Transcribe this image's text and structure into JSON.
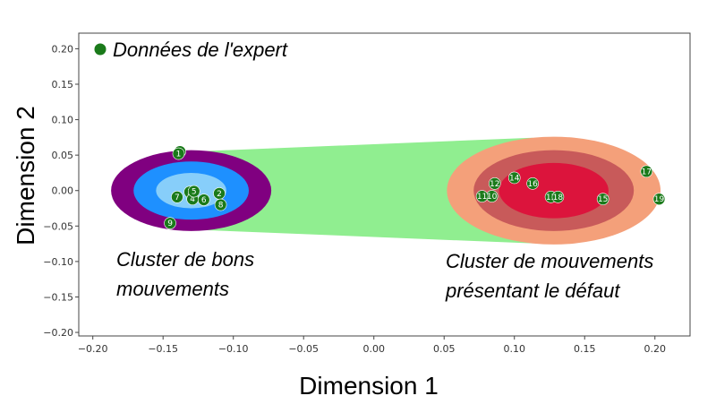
{
  "chart_data": {
    "type": "scatter",
    "xlabel": "Dimension 1",
    "ylabel": "Dimension 2",
    "xlim": [
      -0.21,
      0.225
    ],
    "ylim": [
      -0.205,
      0.222
    ],
    "xticks": [
      -0.2,
      -0.15,
      -0.1,
      -0.05,
      0.0,
      0.05,
      0.1,
      0.15,
      0.2
    ],
    "yticks": [
      -0.2,
      -0.15,
      -0.1,
      -0.05,
      0.0,
      0.05,
      0.1,
      0.15,
      0.2
    ],
    "xtick_labels": [
      "−0.20",
      "−0.15",
      "−0.10",
      "−0.05",
      "0.00",
      "0.05",
      "0.10",
      "0.15",
      "0.20"
    ],
    "ytick_labels": [
      "−0.20",
      "−0.15",
      "−0.10",
      "−0.05",
      "0.00",
      "0.05",
      "0.10",
      "0.15",
      "0.20"
    ],
    "legend": {
      "label": "Données de l'expert",
      "placement": "top-left",
      "color": "#1a7a1a"
    },
    "series": [
      {
        "name": "Données de l'expert",
        "color": "#1a7a1a",
        "points": [
          {
            "id": "0",
            "x": -0.138,
            "y": 0.055
          },
          {
            "id": "1",
            "x": -0.139,
            "y": 0.052
          },
          {
            "id": "2",
            "x": -0.11,
            "y": -0.004
          },
          {
            "id": "3",
            "x": -0.131,
            "y": -0.002
          },
          {
            "id": "4",
            "x": -0.129,
            "y": -0.012
          },
          {
            "id": "5",
            "x": -0.128,
            "y": -0.001
          },
          {
            "id": "6",
            "x": -0.121,
            "y": -0.013
          },
          {
            "id": "7",
            "x": -0.14,
            "y": -0.009
          },
          {
            "id": "8",
            "x": -0.109,
            "y": -0.02
          },
          {
            "id": "9",
            "x": -0.145,
            "y": -0.046
          },
          {
            "id": "10",
            "x": 0.084,
            "y": -0.008
          },
          {
            "id": "11",
            "x": 0.077,
            "y": -0.008
          },
          {
            "id": "12",
            "x": 0.086,
            "y": 0.01
          },
          {
            "id": "13",
            "x": 0.126,
            "y": -0.009
          },
          {
            "id": "14",
            "x": 0.1,
            "y": 0.018
          },
          {
            "id": "15",
            "x": 0.163,
            "y": -0.012
          },
          {
            "id": "16",
            "x": 0.113,
            "y": 0.01
          },
          {
            "id": "17",
            "x": 0.194,
            "y": 0.027
          },
          {
            "id": "18",
            "x": 0.131,
            "y": -0.009
          },
          {
            "id": "19",
            "x": 0.203,
            "y": -0.012
          }
        ]
      }
    ],
    "clusters": [
      {
        "center": [
          -0.13,
          0.0
        ],
        "rings": [
          {
            "rx": 0.057,
            "ry": 0.057,
            "color": "#800080"
          },
          {
            "rx": 0.041,
            "ry": 0.041,
            "color": "#1e90ff"
          },
          {
            "rx": 0.025,
            "ry": 0.025,
            "color": "#87cefa"
          }
        ]
      },
      {
        "center": [
          0.128,
          0.0
        ],
        "rings": [
          {
            "rx": 0.076,
            "ry": 0.076,
            "color": "#f4a07a"
          },
          {
            "rx": 0.057,
            "ry": 0.057,
            "color": "#c85a5a"
          },
          {
            "rx": 0.039,
            "ry": 0.039,
            "color": "#dc143c"
          }
        ]
      }
    ],
    "band_color": "#90ee90",
    "grid": false,
    "annotations": [
      {
        "line1": "Cluster de bons",
        "line2": "mouvements"
      },
      {
        "line1": "Cluster de mouvements",
        "line2": "présentant le défaut"
      }
    ]
  }
}
